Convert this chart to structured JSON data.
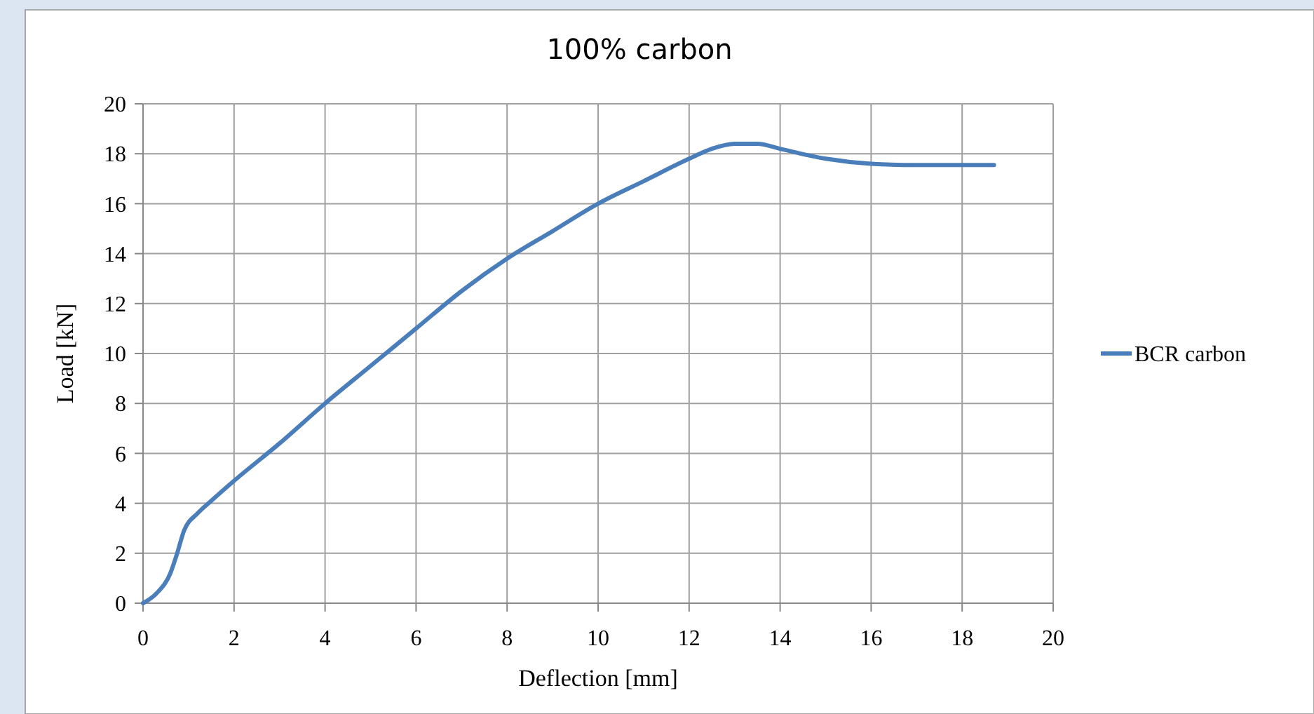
{
  "chart_data": {
    "type": "line",
    "title": "100% carbon",
    "xlabel": "Deflection [mm]",
    "ylabel": "Load [kN]",
    "x": [
      0,
      0.3,
      0.6,
      0.75,
      0.9,
      1.2,
      1.5,
      2,
      3,
      4,
      5,
      6,
      7,
      8,
      9,
      10,
      11,
      12,
      12.5,
      13,
      13.5,
      14,
      15,
      16,
      17,
      18,
      18.7
    ],
    "series": [
      {
        "name": "BCR carbon",
        "color": "#4a7ebb",
        "values": [
          0,
          0.4,
          1.2,
          2,
          2.9,
          3.6,
          4.1,
          4.9,
          6.4,
          8,
          9.5,
          11,
          12.5,
          13.8,
          14.9,
          16,
          16.9,
          17.8,
          18.2,
          18.4,
          18.4,
          18.2,
          17.8,
          17.6,
          17.55,
          17.55,
          17.55
        ]
      }
    ],
    "xlim": [
      0,
      20
    ],
    "xticks": [
      0,
      2,
      4,
      6,
      8,
      10,
      12,
      14,
      16,
      18,
      20
    ],
    "ylim": [
      0,
      20
    ],
    "yticks": [
      0,
      2,
      4,
      6,
      8,
      10,
      12,
      14,
      16,
      18,
      20
    ],
    "grid": true,
    "legend": "right",
    "marker": "none",
    "line_style": "solid"
  }
}
